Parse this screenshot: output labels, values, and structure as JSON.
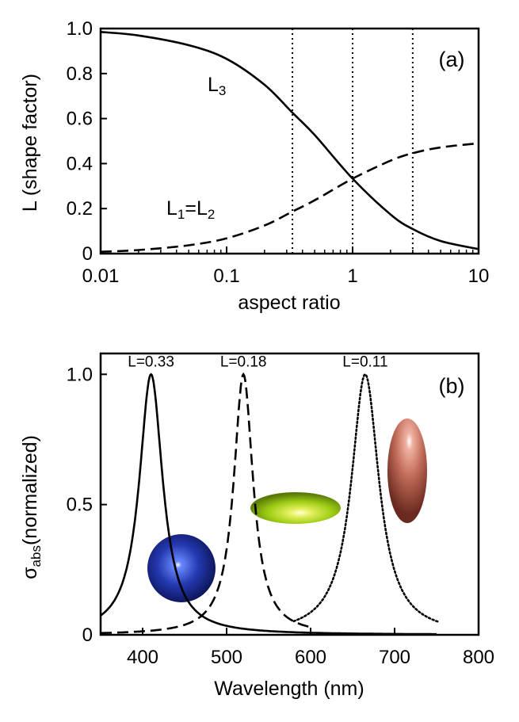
{
  "chart_data": [
    {
      "type": "line",
      "panel_label": "(a)",
      "xlabel": "aspect ratio",
      "ylabel": "L (shape factor)",
      "xscale": "log",
      "xlim": [
        0.01,
        10
      ],
      "ylim": [
        0,
        1
      ],
      "x_ticks": [
        "0.01",
        "0.1",
        "1",
        "10"
      ],
      "y_ticks": [
        "0",
        "0.2",
        "0.4",
        "0.6",
        "0.8",
        "1.0"
      ],
      "vertical_dotted_lines_at": [
        0.333,
        1,
        3
      ],
      "series": [
        {
          "name": "L3",
          "label_main": "L",
          "label_sub": "3",
          "style": "solid",
          "x": [
            0.01,
            0.02,
            0.05,
            0.1,
            0.2,
            0.333,
            0.5,
            1,
            2,
            3,
            5,
            10
          ],
          "y": [
            0.985,
            0.969,
            0.926,
            0.865,
            0.75,
            0.626,
            0.527,
            0.333,
            0.174,
            0.109,
            0.056,
            0.02
          ]
        },
        {
          "name": "L1=L2",
          "label_main": "L",
          "label_sub1": "1",
          "label_eq": "=L",
          "label_sub2": "2",
          "style": "dashed",
          "x": [
            0.01,
            0.02,
            0.05,
            0.1,
            0.2,
            0.333,
            0.5,
            1,
            2,
            3,
            5,
            10
          ],
          "y": [
            0.008,
            0.016,
            0.037,
            0.068,
            0.125,
            0.187,
            0.237,
            0.333,
            0.413,
            0.446,
            0.472,
            0.49
          ]
        }
      ]
    },
    {
      "type": "line",
      "panel_label": "(b)",
      "xlabel": "Wavelength (nm)",
      "ylabel_main": "σ",
      "ylabel_sub": "abs",
      "ylabel_rest": "(normalized)",
      "xlim": [
        350,
        800
      ],
      "ylim": [
        0,
        1.08
      ],
      "x_ticks": [
        "400",
        "500",
        "600",
        "700",
        "800"
      ],
      "y_ticks": [
        "0",
        "0.5",
        "1.0"
      ],
      "series": [
        {
          "name": "L=0.33",
          "style": "solid",
          "peak_nm": 410,
          "width_nm": 17,
          "range": [
            350,
            750
          ]
        },
        {
          "name": "L=0.18",
          "style": "dashed",
          "peak_nm": 520,
          "width_nm": 14,
          "range": [
            350,
            600
          ]
        },
        {
          "name": "L=0.11",
          "style": "dotted",
          "peak_nm": 665,
          "width_nm": 20,
          "range": [
            580,
            752
          ]
        }
      ],
      "insets": [
        {
          "name": "sphere",
          "color": "#1a2a9a",
          "highlight": "#ffffff"
        },
        {
          "name": "oblate-spheroid",
          "color": "#9ccc14",
          "highlight": "#ffffc0"
        },
        {
          "name": "prolate-spheroid",
          "color": "#b05848",
          "highlight": "#ffe6dc"
        }
      ]
    }
  ]
}
